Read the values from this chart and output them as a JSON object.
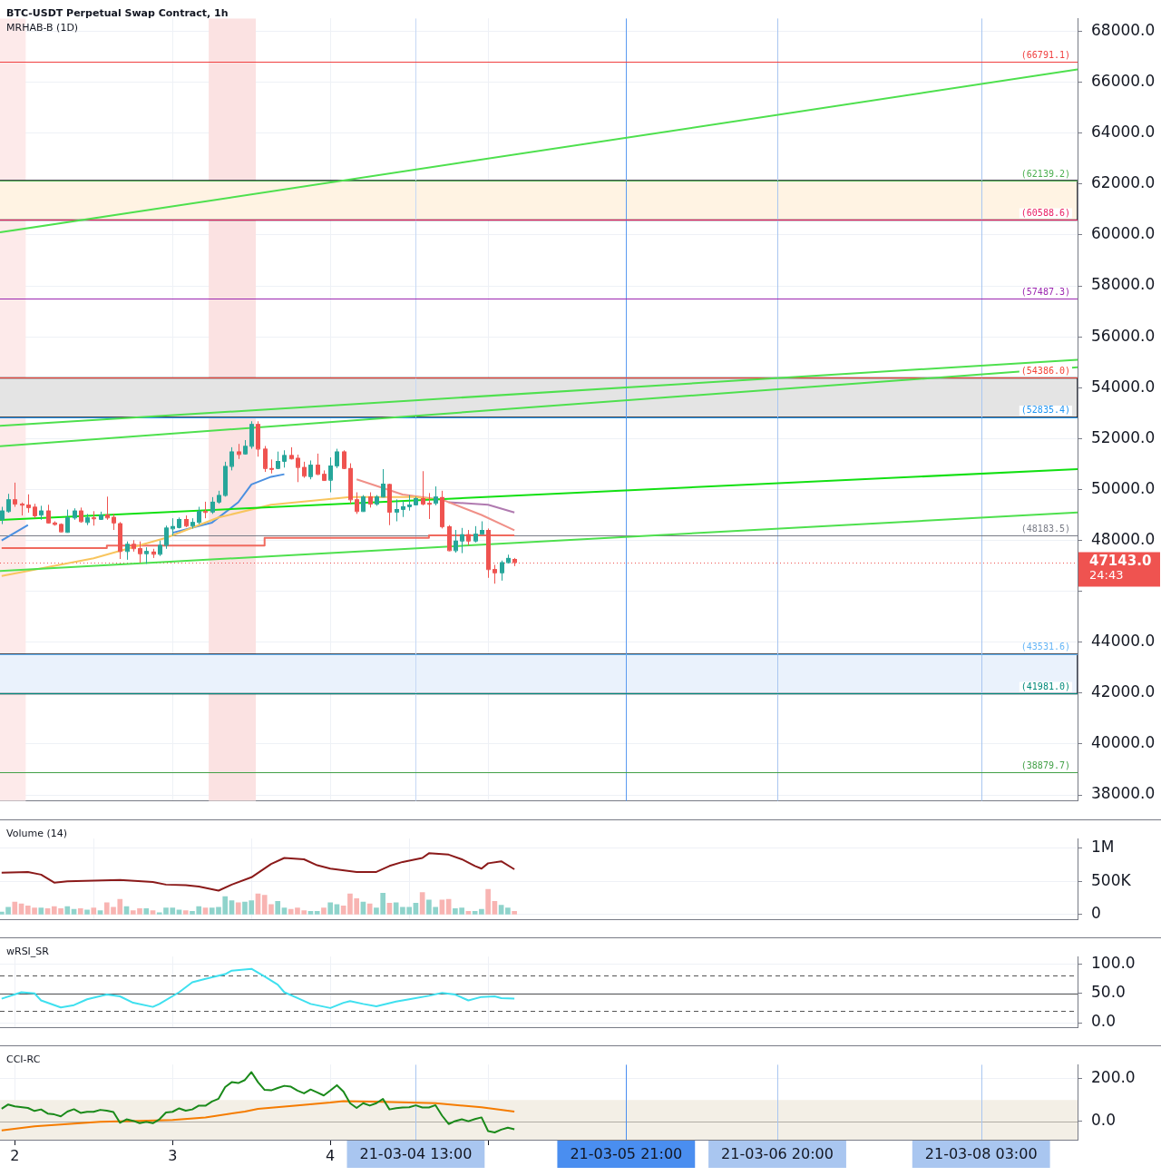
{
  "chart_data": [
    {
      "type": "candlestick",
      "title": "BTC-USDT Perpetual Swap Contract, 1h",
      "subtitle": "MRHAB-B (1D)",
      "x": [
        "--03-01T22:00",
        "--03-01T23:00",
        "--03-02T00:00",
        "--03-02T01:00",
        "--03-02T02:00",
        "--03-02T03:00",
        "--03-02T04:00",
        "--03-02T05:00",
        "--03-02T06:00",
        "--03-02T07:00",
        "--03-02T08:00",
        "--03-02T09:00",
        "--03-02T10:00",
        "--03-02T11:00",
        "--03-02T12:00",
        "--03-02T13:00",
        "--03-02T14:00",
        "--03-02T15:00",
        "--03-02T16:00",
        "--03-02T17:00",
        "--03-02T18:00",
        "--03-02T19:00",
        "--03-02T20:00",
        "--03-02T21:00",
        "--03-02T22:00",
        "--03-02T23:00",
        "--03-03T00:00",
        "--03-03T01:00",
        "--03-03T02:00",
        "--03-03T03:00",
        "--03-03T04:00",
        "--03-03T05:00",
        "--03-03T06:00",
        "--03-03T07:00",
        "--03-03T08:00",
        "--03-03T09:00",
        "--03-03T10:00",
        "--03-03T11:00",
        "--03-03T12:00",
        "--03-03T13:00",
        "--03-03T14:00",
        "--03-03T15:00",
        "--03-03T16:00",
        "--03-03T17:00",
        "--03-03T18:00",
        "--03-03T19:00",
        "--03-03T20:00",
        "--03-03T21:00",
        "--03-03T22:00",
        "--03-03T23:00",
        "--03-04T00:00",
        "--03-04T01:00",
        "--03-04T02:00",
        "--03-04T03:00",
        "--03-04T04:00",
        "--03-04T05:00",
        "--03-04T06:00",
        "--03-04T07:00",
        "--03-04T08:00",
        "--03-04T09:00",
        "--03-04T10:00",
        "--03-04T11:00",
        "--03-04T12:00",
        "--03-04T13:00",
        "--03-04T14:00",
        "--03-04T15:00",
        "--03-04T16:00",
        "--03-04T17:00",
        "--03-04T18:00",
        "--03-04T19:00",
        "--03-04T20:00",
        "--03-04T21:00",
        "--03-04T22:00",
        "--03-04T23:00",
        "--03-05T00:00",
        "--03-05T01:00",
        "--03-05T02:00",
        "--03-05T03:00",
        "--03-05T04:00"
      ],
      "ohlc": [
        [
          48830,
          49320,
          48640,
          49170
        ],
        [
          49150,
          49830,
          49090,
          49610
        ],
        [
          49610,
          50270,
          49320,
          49440
        ],
        [
          49440,
          49490,
          48980,
          49400
        ],
        [
          49400,
          49810,
          49090,
          49300
        ],
        [
          49320,
          49440,
          48870,
          48980
        ],
        [
          49010,
          49360,
          48810,
          49170
        ],
        [
          49170,
          49400,
          48670,
          48700
        ],
        [
          48700,
          48750,
          48580,
          48640
        ],
        [
          48640,
          48670,
          48330,
          48350
        ],
        [
          48330,
          49210,
          48310,
          48900
        ],
        [
          48900,
          49260,
          48810,
          49170
        ],
        [
          49170,
          49290,
          48700,
          48750
        ],
        [
          48720,
          49040,
          48600,
          48900
        ],
        [
          48900,
          49150,
          48580,
          48870
        ],
        [
          48840,
          49130,
          48810,
          49010
        ],
        [
          49010,
          49720,
          48810,
          48900
        ],
        [
          48920,
          49040,
          48410,
          48700
        ],
        [
          48670,
          48720,
          47270,
          47580
        ],
        [
          47580,
          47960,
          47240,
          47860
        ],
        [
          47860,
          48010,
          47560,
          47690
        ],
        [
          47690,
          47960,
          47120,
          47490
        ],
        [
          47490,
          47730,
          47080,
          47580
        ],
        [
          47560,
          47670,
          47310,
          47470
        ],
        [
          47470,
          47990,
          47390,
          47820
        ],
        [
          47820,
          48580,
          47670,
          48500
        ],
        [
          48470,
          48870,
          48180,
          48560
        ],
        [
          48520,
          48900,
          48470,
          48840
        ],
        [
          48840,
          48980,
          48520,
          48580
        ],
        [
          48580,
          48870,
          48470,
          48720
        ],
        [
          48720,
          49320,
          48640,
          49150
        ],
        [
          49150,
          49520,
          48870,
          49120
        ],
        [
          49130,
          49700,
          49040,
          49520
        ],
        [
          49520,
          49950,
          49440,
          49780
        ],
        [
          49780,
          51090,
          49720,
          50920
        ],
        [
          50920,
          51660,
          50750,
          51490
        ],
        [
          51490,
          51790,
          51200,
          51390
        ],
        [
          51410,
          51940,
          51370,
          51710
        ],
        [
          51710,
          52680,
          51600,
          52570
        ],
        [
          52570,
          52680,
          51290,
          51600
        ],
        [
          51600,
          51710,
          50690,
          50840
        ],
        [
          50840,
          51180,
          50630,
          50830
        ],
        [
          50840,
          51490,
          50800,
          51120
        ],
        [
          51120,
          51540,
          50860,
          51350
        ],
        [
          51350,
          51660,
          51180,
          51220
        ],
        [
          51240,
          51370,
          50290,
          50880
        ],
        [
          50880,
          51090,
          50460,
          50540
        ],
        [
          50520,
          51140,
          50400,
          50970
        ],
        [
          50970,
          51410,
          50570,
          50610
        ],
        [
          50610,
          50750,
          50350,
          50370
        ],
        [
          50380,
          51260,
          49890,
          50940
        ],
        [
          50940,
          51600,
          50840,
          51490
        ],
        [
          51490,
          51540,
          50800,
          50840
        ],
        [
          50840,
          51030,
          49440,
          49610
        ],
        [
          49610,
          49890,
          49040,
          49150
        ],
        [
          49150,
          49780,
          49130,
          49720
        ],
        [
          49720,
          49890,
          49290,
          49440
        ],
        [
          49440,
          49780,
          49360,
          49720
        ],
        [
          49720,
          50800,
          49700,
          50230
        ],
        [
          50210,
          50230,
          48600,
          49120
        ],
        [
          49120,
          49610,
          48750,
          49230
        ],
        [
          49230,
          49550,
          48920,
          49340
        ],
        [
          49340,
          49780,
          49170,
          49410
        ],
        [
          49410,
          49720,
          49380,
          49660
        ],
        [
          49660,
          50720,
          49380,
          49440
        ],
        [
          49470,
          49860,
          48840,
          49460
        ],
        [
          49470,
          50120,
          49380,
          49720
        ],
        [
          49700,
          49950,
          48470,
          48550
        ],
        [
          48550,
          48600,
          47580,
          47610
        ],
        [
          47610,
          48410,
          47520,
          47990
        ],
        [
          47990,
          48490,
          47500,
          48240
        ],
        [
          48240,
          48410,
          47810,
          47990
        ],
        [
          47990,
          48560,
          47920,
          48260
        ],
        [
          48260,
          48750,
          48240,
          48410
        ],
        [
          48410,
          48470,
          46530,
          46870
        ],
        [
          46870,
          47040,
          46300,
          46740
        ],
        [
          46740,
          47210,
          46420,
          47140
        ],
        [
          47140,
          47440,
          47100,
          47310
        ],
        [
          47270,
          47310,
          46990,
          47143
        ]
      ],
      "series": [
        {
          "type": "line",
          "color": "#4ee04e",
          "x": [
            "--03-01T21:45",
            "--03-08T17:40"
          ],
          "values": [
            60100,
            66500
          ]
        },
        {
          "type": "line",
          "color": "#4ee04e",
          "x": [
            "--03-01T21:45",
            "--03-08T17:40"
          ],
          "values": [
            52500,
            55100
          ]
        },
        {
          "type": "line",
          "color": "#4ee04e",
          "x": [
            "--03-01T21:45",
            "--03-08T17:40"
          ],
          "values": [
            51700,
            54800
          ]
        },
        {
          "type": "line",
          "color": "#12e012",
          "x": [
            "--03-01T21:45",
            "--03-08T17:40"
          ],
          "values": [
            48800,
            50800
          ]
        },
        {
          "type": "line",
          "color": "#4ee04e",
          "x": [
            "--03-01T21:45",
            "--03-08T17:40"
          ],
          "values": [
            46800,
            49100
          ]
        },
        {
          "type": "line",
          "color": "#f8c55e",
          "x": [
            "--03-01T22:00",
            "--03-02T12:00",
            "--03-02T23:00",
            "--03-03T07:00",
            "--03-03T15:00",
            "--03-04T03:00",
            "--03-04T13:00",
            "--03-04T16:00"
          ],
          "values": [
            46600,
            47300,
            48100,
            48900,
            49400,
            49700,
            49700,
            49600
          ]
        },
        {
          "type": "line",
          "color": "#4a8fe0",
          "x": [
            "--03-01T22:00",
            "--03-02T02:00",
            "--03-02T12:00",
            "--03-03T00:00",
            "--03-03T06:00",
            "--03-03T10:00",
            "--03-03T12:00",
            "--03-03T15:00",
            "--03-03T17:00"
          ],
          "values": [
            48000,
            48600,
            null,
            48300,
            48700,
            49500,
            50200,
            50500,
            50600
          ]
        },
        {
          "type": "line",
          "color": "#f09088",
          "x": [
            "--03-04T04:00",
            "--03-04T11:00",
            "--03-04T17:00",
            "--03-04T23:00",
            "--03-05T04:00"
          ],
          "values": [
            50400,
            49800,
            49600,
            49000,
            48400
          ]
        },
        {
          "type": "line",
          "color": "#b07ab0",
          "x": [
            "--03-04T18:00",
            "--03-05T00:00",
            "--03-05T04:00"
          ],
          "values": [
            49500,
            49400,
            49100
          ]
        },
        {
          "type": "step",
          "color": "#f06a5e",
          "x": [
            "--03-01T22:00",
            "--03-02T14:00",
            "--03-03T14:00",
            "--03-04T15:00",
            "--03-05T04:00"
          ],
          "values": [
            47700,
            47800,
            48100,
            48200,
            48200
          ]
        }
      ],
      "xlim": [
        "--03-01T21:45",
        "--03-08T17:40"
      ],
      "xticks": [
        {
          "value": "--03-02",
          "label": null
        },
        {
          "value": "--03-03",
          "label": null
        },
        {
          "value": "--03-04",
          "label": null
        },
        {
          "value": "--03-05",
          "label": null
        }
      ],
      "ylim": [
        37760,
        68510
      ],
      "yticks": [
        {
          "value": 38000,
          "label": "38000.0"
        },
        {
          "value": 40000,
          "label": "40000.0"
        },
        {
          "value": 42000,
          "label": "42000.0"
        },
        {
          "value": 44000,
          "label": "44000.0"
        },
        {
          "value": 46000,
          "label": null
        },
        {
          "value": 48000,
          "label": "48000.0"
        },
        {
          "value": 50000,
          "label": "50000.0"
        },
        {
          "value": 52000,
          "label": "52000.0"
        },
        {
          "value": 54000,
          "label": "54000.0"
        },
        {
          "value": 56000,
          "label": "56000.0"
        },
        {
          "value": 58000,
          "label": "58000.0"
        },
        {
          "value": 60000,
          "label": "60000.0"
        },
        {
          "value": 62000,
          "label": "62000.0"
        },
        {
          "value": 64000,
          "label": "64000.0"
        },
        {
          "value": 66000,
          "label": "66000.0"
        },
        {
          "value": 68000,
          "label": "68000.0"
        }
      ],
      "bands": [
        {
          "axis": "x",
          "from": "--03-01T21:45",
          "to": "--03-02T01:40",
          "color": "#fdeaea"
        },
        {
          "axis": "x",
          "from": "--03-03T05:30",
          "to": "--03-03T12:40",
          "color": "#fbe2e2"
        },
        {
          "axis": "y",
          "from": 60588.6,
          "to": 62139.2,
          "color": "#fff3e3"
        },
        {
          "axis": "y",
          "from": 52835.4,
          "to": 54386.0,
          "color": "#e4e4e4"
        },
        {
          "axis": "y",
          "from": 41981.0,
          "to": 43531.6,
          "color": "#eaf2fc"
        }
      ],
      "ref_lines": [
        {
          "axis": "x",
          "value": "--03-04T13:00",
          "color": "#c5d8f5"
        },
        {
          "axis": "x",
          "value": "--03-05T21:00",
          "color": "#5b9bf0"
        },
        {
          "axis": "x",
          "value": "--03-06T20:00",
          "color": "#a9c6f0"
        },
        {
          "axis": "x",
          "value": "--03-08T03:00",
          "color": "#a9c6f0"
        },
        {
          "axis": "y",
          "value": 66791.1,
          "label": "(66791.1)",
          "color": "#f04040"
        },
        {
          "axis": "y",
          "value": 62139.2,
          "label": "(62139.2)",
          "color": "#4caf50"
        },
        {
          "axis": "y",
          "value": 60588.6,
          "label": "(60588.6)",
          "color": "#e91e63"
        },
        {
          "axis": "y",
          "value": 57487.3,
          "label": "(57487.3)",
          "color": "#9c27b0"
        },
        {
          "axis": "y",
          "value": 54386.0,
          "label": "(54386.0)",
          "color": "#f44336"
        },
        {
          "axis": "y",
          "value": 52835.4,
          "label": "(52835.4)",
          "color": "#2196f3"
        },
        {
          "axis": "y",
          "value": 48183.5,
          "label": "(48183.5)",
          "color": "#787b86"
        },
        {
          "axis": "y",
          "value": 43531.6,
          "label": "(43531.6)",
          "color": "#64b5f6"
        },
        {
          "axis": "y",
          "value": 41981.0,
          "label": "(41981.0)",
          "color": "#00897b"
        },
        {
          "axis": "y",
          "value": 38879.7,
          "label": "(38879.7)",
          "color": "#43a047"
        },
        {
          "axis": "y",
          "value": 47143,
          "label": "47143.0",
          "color": "#ef5350",
          "line_style": "dotted"
        }
      ],
      "annotations": [
        "24:43"
      ],
      "grid": true,
      "tick_labels": "y"
    },
    {
      "type": "bar",
      "title": "Volume (14)",
      "x": [
        "--03-01T22:00",
        "--03-01T23:00",
        "--03-02T00:00",
        "--03-02T01:00",
        "--03-02T02:00",
        "--03-02T03:00",
        "--03-02T04:00",
        "--03-02T05:00",
        "--03-02T06:00",
        "--03-02T07:00",
        "--03-02T08:00",
        "--03-02T09:00",
        "--03-02T10:00",
        "--03-02T11:00",
        "--03-02T12:00",
        "--03-02T13:00",
        "--03-02T14:00",
        "--03-02T15:00",
        "--03-02T16:00",
        "--03-02T17:00",
        "--03-02T18:00",
        "--03-02T19:00",
        "--03-02T20:00",
        "--03-02T21:00",
        "--03-02T22:00",
        "--03-02T23:00",
        "--03-03T00:00",
        "--03-03T01:00",
        "--03-03T02:00",
        "--03-03T03:00",
        "--03-03T04:00",
        "--03-03T05:00",
        "--03-03T06:00",
        "--03-03T07:00",
        "--03-03T08:00",
        "--03-03T09:00",
        "--03-03T10:00",
        "--03-03T11:00",
        "--03-03T12:00",
        "--03-03T13:00",
        "--03-03T14:00",
        "--03-03T15:00",
        "--03-03T16:00",
        "--03-03T17:00",
        "--03-03T18:00",
        "--03-03T19:00",
        "--03-03T20:00",
        "--03-03T21:00",
        "--03-03T22:00",
        "--03-03T23:00",
        "--03-04T00:00",
        "--03-04T01:00",
        "--03-04T02:00",
        "--03-04T03:00",
        "--03-04T04:00",
        "--03-04T05:00",
        "--03-04T06:00",
        "--03-04T07:00",
        "--03-04T08:00",
        "--03-04T09:00",
        "--03-04T10:00",
        "--03-04T11:00",
        "--03-04T12:00",
        "--03-04T13:00",
        "--03-04T14:00",
        "--03-04T15:00",
        "--03-04T16:00",
        "--03-04T17:00",
        "--03-04T18:00",
        "--03-04T19:00",
        "--03-04T20:00",
        "--03-04T21:00",
        "--03-04T22:00",
        "--03-04T23:00",
        "--03-05T00:00",
        "--03-05T01:00",
        "--03-05T02:00",
        "--03-05T03:00",
        "--03-05T04:00"
      ],
      "values": [
        40000,
        110000,
        190000,
        160000,
        130000,
        100000,
        100000,
        90000,
        120000,
        90000,
        120000,
        80000,
        90000,
        70000,
        100000,
        60000,
        180000,
        110000,
        230000,
        120000,
        60000,
        90000,
        90000,
        60000,
        30000,
        100000,
        100000,
        70000,
        60000,
        50000,
        120000,
        100000,
        100000,
        110000,
        270000,
        210000,
        180000,
        190000,
        210000,
        310000,
        290000,
        150000,
        200000,
        100000,
        80000,
        100000,
        60000,
        50000,
        50000,
        100000,
        180000,
        150000,
        130000,
        310000,
        240000,
        190000,
        160000,
        100000,
        320000,
        170000,
        180000,
        110000,
        110000,
        170000,
        330000,
        220000,
        110000,
        220000,
        230000,
        90000,
        100000,
        50000,
        50000,
        80000,
        380000,
        200000,
        140000,
        100000,
        50000
      ],
      "colors": [
        "#8fd3cb",
        "#8fd3cb",
        "#f8b4b2",
        "#f8b4b2",
        "#f8b4b2",
        "#f8b4b2",
        "#8fd3cb",
        "#f8b4b2",
        "#f8b4b2",
        "#f8b4b2",
        "#8fd3cb",
        "#8fd3cb",
        "#f8b4b2",
        "#8fd3cb",
        "#f8b4b2",
        "#8fd3cb",
        "#f8b4b2",
        "#f8b4b2",
        "#f8b4b2",
        "#8fd3cb",
        "#f8b4b2",
        "#f8b4b2",
        "#8fd3cb",
        "#f8b4b2",
        "#8fd3cb",
        "#8fd3cb",
        "#8fd3cb",
        "#8fd3cb",
        "#f8b4b2",
        "#8fd3cb",
        "#8fd3cb",
        "#f8b4b2",
        "#8fd3cb",
        "#8fd3cb",
        "#8fd3cb",
        "#8fd3cb",
        "#f8b4b2",
        "#8fd3cb",
        "#8fd3cb",
        "#f8b4b2",
        "#f8b4b2",
        "#f8b4b2",
        "#8fd3cb",
        "#8fd3cb",
        "#f8b4b2",
        "#f8b4b2",
        "#f8b4b2",
        "#8fd3cb",
        "#8fd3cb",
        "#f8b4b2",
        "#8fd3cb",
        "#8fd3cb",
        "#f8b4b2",
        "#f8b4b2",
        "#f8b4b2",
        "#8fd3cb",
        "#f8b4b2",
        "#8fd3cb",
        "#8fd3cb",
        "#f8b4b2",
        "#8fd3cb",
        "#8fd3cb",
        "#8fd3cb",
        "#8fd3cb",
        "#f8b4b2",
        "#8fd3cb",
        "#8fd3cb",
        "#f8b4b2",
        "#f8b4b2",
        "#8fd3cb",
        "#8fd3cb",
        "#f8b4b2",
        "#8fd3cb",
        "#8fd3cb",
        "#f8b4b2",
        "#f8b4b2",
        "#8fd3cb",
        "#8fd3cb",
        "#f8b4b2"
      ],
      "series": [
        {
          "type": "line",
          "color": "#8b1a1a",
          "x": [
            "--03-01T22:00",
            "--03-02T02:00",
            "--03-02T04:00",
            "--03-02T06:00",
            "--03-02T08:00",
            "--03-02T12:00",
            "--03-02T16:00",
            "--03-02T21:00",
            "--03-02T23:00",
            "--03-03T02:00",
            "--03-03T04:00",
            "--03-03T07:00",
            "--03-03T09:00",
            "--03-03T12:00",
            "--03-03T15:00",
            "--03-03T17:00",
            "--03-03T20:00",
            "--03-03T22:00",
            "--03-04T00:00",
            "--03-04T04:00",
            "--03-04T07:00",
            "--03-04T09:00",
            "--03-04T11:00",
            "--03-04T14:00",
            "--03-04T15:00",
            "--03-04T18:00",
            "--03-04T20:00",
            "--03-04T22:00",
            "--03-04T23:00",
            "--03-05T00:00",
            "--03-05T02:00",
            "--03-05T04:00"
          ],
          "values": [
            630000,
            640000,
            600000,
            480000,
            500000,
            510000,
            520000,
            490000,
            450000,
            440000,
            420000,
            360000,
            450000,
            560000,
            760000,
            850000,
            830000,
            740000,
            690000,
            640000,
            640000,
            730000,
            790000,
            850000,
            920000,
            900000,
            830000,
            730000,
            690000,
            770000,
            800000,
            680000
          ]
        }
      ],
      "xlim": [
        "--03-01T21:45",
        "--03-08T17:40"
      ],
      "xticks": [
        {
          "value": "--03-02",
          "label": null
        },
        {
          "value": "--03-03",
          "label": null
        },
        {
          "value": "--03-04",
          "label": null
        }
      ],
      "ylim": [
        -80000,
        1140000
      ],
      "yticks": [
        {
          "value": 0,
          "label": "0"
        },
        {
          "value": 500000,
          "label": "500K"
        },
        {
          "value": 1000000,
          "label": "1M"
        }
      ],
      "grid": true,
      "tick_labels": "y"
    },
    {
      "type": "line",
      "title": "wRSI_SR",
      "series": [
        {
          "color": "#3fe0ef",
          "x": [
            "--03-01T22:00",
            "--03-02T01:00",
            "--03-02T03:00",
            "--03-02T04:00",
            "--03-02T07:00",
            "--03-02T09:00",
            "--03-02T11:00",
            "--03-02T14:00",
            "--03-02T16:00",
            "--03-02T18:00",
            "--03-02T21:00",
            "--03-02T22:00",
            "--03-03T01:00",
            "--03-03T03:00",
            "--03-03T05:00",
            "--03-03T08:00",
            "--03-03T09:00",
            "--03-03T12:00",
            "--03-03T14:00",
            "--03-03T16:00",
            "--03-03T17:00",
            "--03-03T19:00",
            "--03-03T21:00",
            "--03-04T00:00",
            "--03-04T02:00",
            "--03-04T03:00",
            "--03-04T05:00",
            "--03-04T07:00",
            "--03-04T10:00",
            "--03-04T12:00",
            "--03-04T15:00",
            "--03-04T17:00",
            "--03-04T19:00",
            "--03-04T21:00",
            "--03-04T23:00",
            "--03-05T01:00",
            "--03-05T02:00",
            "--03-05T04:00"
          ],
          "values": [
            41,
            52,
            50,
            38,
            26,
            30,
            40,
            48,
            45,
            34,
            27,
            32,
            52,
            69,
            75,
            83,
            89,
            92,
            79,
            65,
            52,
            42,
            32,
            25,
            34,
            37,
            32,
            28,
            36,
            40,
            46,
            51,
            48,
            38,
            44,
            45,
            42,
            41
          ]
        }
      ],
      "xlim": [
        "--03-01T21:45",
        "--03-08T17:40"
      ],
      "xticks": [
        {
          "value": "--03-02",
          "label": null
        },
        {
          "value": "--03-03",
          "label": null
        },
        {
          "value": "--03-04",
          "label": null
        },
        {
          "value": "--03-05",
          "label": null
        }
      ],
      "ylim": [
        -9,
        113
      ],
      "yticks": [
        {
          "value": 0,
          "label": "0.0"
        },
        {
          "value": 50,
          "label": "50.0"
        },
        {
          "value": 100,
          "label": "100.0"
        }
      ],
      "ref_lines": [
        {
          "axis": "y",
          "value": 80,
          "color": "#555555",
          "line_style": "dashed"
        },
        {
          "axis": "y",
          "value": 50,
          "color": "#555555"
        },
        {
          "axis": "y",
          "value": 20,
          "color": "#555555",
          "line_style": "dashed"
        }
      ],
      "grid": true,
      "tick_labels": "y"
    },
    {
      "type": "line",
      "title": "CCI-RC",
      "series": [
        {
          "color": "#1a8a1a",
          "x": [
            "--03-01T22:00",
            "--03-01T23:00",
            "--03-02T00:00",
            "--03-02T02:00",
            "--03-02T03:00",
            "--03-02T04:00",
            "--03-02T05:00",
            "--03-02T06:00",
            "--03-02T07:00",
            "--03-02T08:00",
            "--03-02T09:00",
            "--03-02T10:00",
            "--03-02T11:00",
            "--03-02T12:00",
            "--03-02T13:00",
            "--03-02T14:00",
            "--03-02T15:00",
            "--03-02T16:00",
            "--03-02T17:00",
            "--03-02T18:00",
            "--03-02T19:00",
            "--03-02T20:00",
            "--03-02T21:00",
            "--03-02T22:00",
            "--03-02T23:00",
            "--03-03T00:00",
            "--03-03T01:00",
            "--03-03T02:00",
            "--03-03T03:00",
            "--03-03T04:00",
            "--03-03T05:00",
            "--03-03T06:00",
            "--03-03T07:00",
            "--03-03T08:00",
            "--03-03T09:00",
            "--03-03T10:00",
            "--03-03T11:00",
            "--03-03T12:00",
            "--03-03T13:00",
            "--03-03T14:00",
            "--03-03T15:00",
            "--03-03T16:00",
            "--03-03T17:00",
            "--03-03T18:00",
            "--03-03T19:00",
            "--03-03T20:00",
            "--03-03T21:00",
            "--03-03T22:00",
            "--03-03T23:00",
            "--03-04T00:00",
            "--03-04T01:00",
            "--03-04T02:00",
            "--03-04T03:00",
            "--03-04T04:00",
            "--03-04T05:00",
            "--03-04T06:00",
            "--03-04T07:00",
            "--03-04T08:00",
            "--03-04T09:00",
            "--03-04T10:00",
            "--03-04T11:00",
            "--03-04T12:00",
            "--03-04T13:00",
            "--03-04T14:00",
            "--03-04T15:00",
            "--03-04T16:00",
            "--03-04T17:00",
            "--03-04T18:00",
            "--03-04T19:00",
            "--03-04T20:00",
            "--03-04T21:00",
            "--03-04T22:00",
            "--03-04T23:00",
            "--03-05T00:00",
            "--03-05T01:00",
            "--03-05T02:00",
            "--03-05T03:00",
            "--03-05T04:00"
          ],
          "values": [
            59,
            79,
            70,
            63,
            49,
            56,
            37,
            33,
            24,
            46,
            57,
            40,
            45,
            45,
            54,
            50,
            44,
            -6,
            10,
            3,
            -8,
            -2,
            -8,
            10,
            42,
            45,
            61,
            50,
            56,
            74,
            73,
            93,
            106,
            160,
            183,
            179,
            193,
            230,
            183,
            147,
            145,
            156,
            166,
            162,
            144,
            131,
            149,
            135,
            121,
            144,
            169,
            139,
            85,
            63,
            85,
            74,
            85,
            105,
            56,
            62,
            65,
            66,
            75,
            65,
            65,
            76,
            27,
            -12,
            2,
            10,
            1,
            11,
            19,
            -45,
            -51,
            -38,
            -29,
            -36
          ]
        },
        {
          "color": "#f57c00",
          "x": [
            "--03-01T22:00",
            "--03-02T03:00",
            "--03-02T08:00",
            "--03-02T13:00",
            "--03-02T19:00",
            "--03-03T00:00",
            "--03-03T05:00",
            "--03-03T11:00",
            "--03-03T13:00",
            "--03-03T19:00",
            "--03-04T00:00",
            "--03-04T02:00",
            "--03-04T08:00",
            "--03-04T16:00",
            "--03-04T23:00",
            "--03-05T04:00"
          ],
          "values": [
            -42,
            -23,
            -12,
            -2,
            3,
            7,
            19,
            46,
            59,
            75,
            88,
            95,
            92,
            85,
            66,
            46
          ]
        }
      ],
      "xlim": [
        "--03-01T21:45",
        "--03-08T17:40"
      ],
      "xticks": [
        {
          "value": "--03-02",
          "label": "2"
        },
        {
          "value": "--03-03",
          "label": "3"
        },
        {
          "value": "--03-04",
          "label": "4"
        },
        {
          "value": "--03-05",
          "label": null
        }
      ],
      "ylim": [
        -85,
        265
      ],
      "yticks": [
        {
          "value": 0,
          "label": "0.0"
        },
        {
          "value": 200,
          "label": "200.0"
        }
      ],
      "bands": [
        {
          "axis": "y",
          "from": -85,
          "to": 100,
          "color": "#f3efe6"
        }
      ],
      "ref_lines": [
        {
          "axis": "y",
          "value": 0,
          "color": "#b0aca4"
        },
        {
          "axis": "x",
          "value": "--03-04T13:00",
          "label": "21-03-04 13:00",
          "color": "#a9c6f0"
        },
        {
          "axis": "x",
          "value": "--03-05T21:00",
          "label": "21-03-05 21:00",
          "color": "#4a8ef0"
        },
        {
          "axis": "x",
          "value": "--03-06T20:00",
          "label": "21-03-06 20:00",
          "color": "#a9c6f0"
        },
        {
          "axis": "x",
          "value": "--03-08T03:00",
          "label": "21-03-08 03:00",
          "color": "#a9c6f0"
        }
      ],
      "grid": true
    }
  ]
}
